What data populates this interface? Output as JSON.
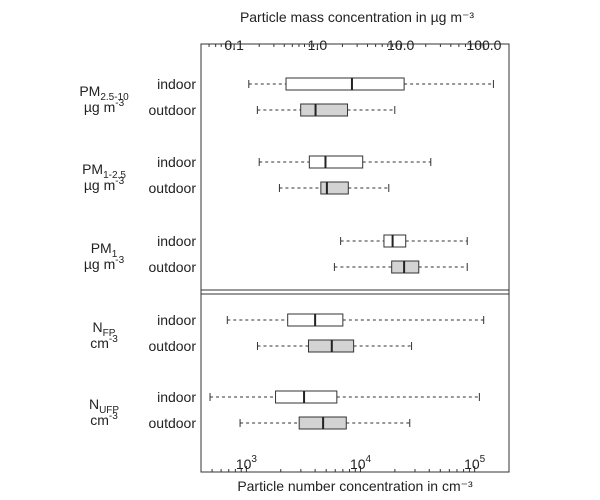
{
  "chart_data": {
    "type": "box",
    "top_axis": {
      "label": "Particle mass concentration in µg m⁻³",
      "scale": "log",
      "range": [
        0.04,
        200
      ],
      "ticks": [
        {
          "value": 0.1,
          "label": "0.1"
        },
        {
          "value": 1,
          "label": "1.0"
        },
        {
          "value": 10,
          "label": "10.0"
        },
        {
          "value": 100,
          "label": "100.0"
        }
      ]
    },
    "bottom_axis": {
      "label": "Particle number concentration in cm⁻³",
      "scale": "log",
      "range": [
        400,
        200000
      ],
      "ticks": [
        {
          "value": 1000,
          "base": "10",
          "exp": "3"
        },
        {
          "value": 10000,
          "base": "10",
          "exp": "4"
        },
        {
          "value": 100000,
          "base": "10",
          "exp": "5"
        }
      ]
    },
    "box_colors": {
      "indoor": "#ffffff",
      "outdoor": "#d3d3d3"
    },
    "groups": [
      {
        "name_main": "PM",
        "name_sub": "2.5-10",
        "unit_main": "µg m",
        "unit_sup": "-3",
        "axis": "mass",
        "series": [
          {
            "label": "indoor",
            "min": 0.15,
            "q1": 0.42,
            "median": 2.6,
            "q3": 11,
            "max": 130
          },
          {
            "label": "outdoor",
            "min": 0.19,
            "q1": 0.63,
            "median": 0.95,
            "q3": 2.3,
            "max": 8.5
          }
        ]
      },
      {
        "name_main": "PM",
        "name_sub": "1-2.5",
        "unit_main": "µg m",
        "unit_sup": "-3",
        "axis": "mass",
        "series": [
          {
            "label": "indoor",
            "min": 0.2,
            "q1": 0.8,
            "median": 1.25,
            "q3": 3.5,
            "max": 23
          },
          {
            "label": "outdoor",
            "min": 0.35,
            "q1": 1.1,
            "median": 1.3,
            "q3": 2.35,
            "max": 7.2
          }
        ]
      },
      {
        "name_main": "PM",
        "name_sub": "1",
        "unit_main": "µg m",
        "unit_sup": "-3",
        "axis": "mass",
        "series": [
          {
            "label": "indoor",
            "min": 1.9,
            "q1": 6.3,
            "median": 8.0,
            "q3": 11.5,
            "max": 63
          },
          {
            "label": "outdoor",
            "min": 1.6,
            "q1": 7.8,
            "median": 11.0,
            "q3": 16.5,
            "max": 63
          }
        ]
      },
      {
        "name_main": "N",
        "name_sub": "FP",
        "unit_main": "cm",
        "unit_sup": "-3",
        "axis": "number",
        "series": [
          {
            "label": "indoor",
            "min": 680,
            "q1": 2300,
            "median": 4000,
            "q3": 7000,
            "max": 120000
          },
          {
            "label": "outdoor",
            "min": 1250,
            "q1": 3500,
            "median": 5600,
            "q3": 8700,
            "max": 28000
          }
        ]
      },
      {
        "name_main": "N",
        "name_sub": "UFP",
        "unit_main": "cm",
        "unit_sup": "-3",
        "axis": "number",
        "series": [
          {
            "label": "indoor",
            "min": 480,
            "q1": 1800,
            "median": 3200,
            "q3": 6200,
            "max": 110000
          },
          {
            "label": "outdoor",
            "min": 880,
            "q1": 2900,
            "median": 4700,
            "q3": 7500,
            "max": 27000
          }
        ]
      }
    ]
  }
}
